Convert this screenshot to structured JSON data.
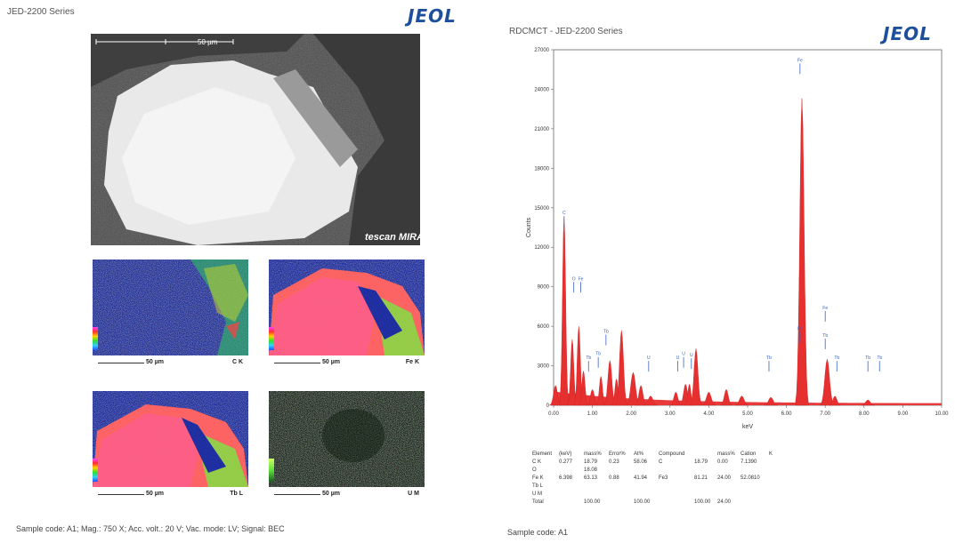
{
  "left_panel": {
    "series_title": "JED-2200 Series",
    "logo": "JEOL",
    "sem_image": {
      "scale_label": "50 µm",
      "watermark": "tescan MIRA"
    },
    "maps": [
      {
        "element": "C K",
        "scale": "50 µm"
      },
      {
        "element": "Fe K",
        "scale": "50 µm"
      },
      {
        "element": "Tb L",
        "scale": "50 µm"
      },
      {
        "element": "U M",
        "scale": "50 µm"
      }
    ],
    "caption": "Sample code: A1; Mag.: 750 X; Acc. volt.: 20 V; Vac. mode: LV; Signal: BEC"
  },
  "right_panel": {
    "series_title": "RDCMCT - JED-2200 Series",
    "logo": "JEOL",
    "caption": "Sample code: A1"
  },
  "chart_data": {
    "type": "line",
    "title": "",
    "xlabel": "keV",
    "ylabel": "Counts",
    "xlim": [
      0,
      10
    ],
    "ylim": [
      0,
      27000
    ],
    "x_ticks": [
      "0.00",
      "1.00",
      "2.00",
      "3.00",
      "4.00",
      "5.00",
      "6.00",
      "7.00",
      "8.00",
      "9.00",
      "10.00"
    ],
    "y_ticks": [
      "0",
      "3000",
      "6000",
      "9000",
      "12000",
      "15000",
      "18000",
      "21000",
      "24000",
      "27000"
    ],
    "peaks": [
      {
        "x": 0.05,
        "y": 1500,
        "w": 0.05
      },
      {
        "x": 0.27,
        "y": 14300,
        "w": 0.04
      },
      {
        "x": 0.48,
        "y": 5000,
        "w": 0.04
      },
      {
        "x": 0.65,
        "y": 6000,
        "w": 0.04
      },
      {
        "x": 0.77,
        "y": 2600,
        "w": 0.04
      },
      {
        "x": 1.0,
        "y": 1200,
        "w": 0.05
      },
      {
        "x": 1.22,
        "y": 2200,
        "w": 0.04
      },
      {
        "x": 1.45,
        "y": 3400,
        "w": 0.05
      },
      {
        "x": 1.62,
        "y": 2000,
        "w": 0.04
      },
      {
        "x": 1.75,
        "y": 5700,
        "w": 0.05
      },
      {
        "x": 2.05,
        "y": 2500,
        "w": 0.06
      },
      {
        "x": 2.25,
        "y": 1500,
        "w": 0.05
      },
      {
        "x": 2.5,
        "y": 700,
        "w": 0.06
      },
      {
        "x": 3.15,
        "y": 1000,
        "w": 0.05
      },
      {
        "x": 3.4,
        "y": 1600,
        "w": 0.05
      },
      {
        "x": 3.5,
        "y": 1600,
        "w": 0.04
      },
      {
        "x": 3.67,
        "y": 4300,
        "w": 0.05
      },
      {
        "x": 4.0,
        "y": 1000,
        "w": 0.06
      },
      {
        "x": 4.45,
        "y": 1200,
        "w": 0.05
      },
      {
        "x": 4.85,
        "y": 700,
        "w": 0.06
      },
      {
        "x": 5.6,
        "y": 600,
        "w": 0.06
      },
      {
        "x": 6.4,
        "y": 23300,
        "w": 0.055
      },
      {
        "x": 7.05,
        "y": 3500,
        "w": 0.06
      },
      {
        "x": 7.25,
        "y": 700,
        "w": 0.05
      },
      {
        "x": 8.1,
        "y": 400,
        "w": 0.06
      }
    ],
    "annotations": [
      {
        "x": 0.27,
        "y": 14500,
        "label": "C"
      },
      {
        "x": 0.52,
        "y": 9500,
        "label": "O"
      },
      {
        "x": 0.7,
        "y": 9500,
        "label": "Fe"
      },
      {
        "x": 0.9,
        "y": 3500,
        "label": "Tb"
      },
      {
        "x": 1.15,
        "y": 3800,
        "label": "Tb"
      },
      {
        "x": 1.35,
        "y": 5500,
        "label": "Tb"
      },
      {
        "x": 2.45,
        "y": 3500,
        "label": "U"
      },
      {
        "x": 3.2,
        "y": 3500,
        "label": "U"
      },
      {
        "x": 3.35,
        "y": 3800,
        "label": "U"
      },
      {
        "x": 3.55,
        "y": 3700,
        "label": "U"
      },
      {
        "x": 5.55,
        "y": 3500,
        "label": "Tb"
      },
      {
        "x": 6.35,
        "y": 26100,
        "label": "Fe"
      },
      {
        "x": 6.35,
        "y": 5700,
        "label": "Fe"
      },
      {
        "x": 7.0,
        "y": 7300,
        "label": "Fe"
      },
      {
        "x": 7.0,
        "y": 5200,
        "label": "Tb"
      },
      {
        "x": 7.3,
        "y": 3500,
        "label": "Tb"
      },
      {
        "x": 8.1,
        "y": 3500,
        "label": "Tb"
      },
      {
        "x": 8.4,
        "y": 3500,
        "label": "Tb"
      }
    ],
    "table": {
      "columns": [
        "Element",
        "(keV)",
        "mass%",
        "Error%",
        "At%",
        "Compound",
        "",
        "mass%",
        "Cation",
        "K"
      ],
      "rows": [
        [
          "C K",
          "0.277",
          "18.79",
          "0.23",
          "58.06",
          "C",
          "18.79",
          "0.00",
          "7.1390",
          ""
        ],
        [
          "O",
          "",
          "18.08",
          "",
          "",
          "",
          "",
          "",
          "",
          ""
        ],
        [
          "Fe K",
          "6.398",
          "63.13",
          "0.88",
          "41.94",
          "Fe3",
          "81.21",
          "24.00",
          "52.0810",
          ""
        ],
        [
          "Tb L",
          "",
          "",
          "",
          "",
          "",
          "",
          "",
          "",
          ""
        ],
        [
          "U M",
          "",
          "",
          "",
          "",
          "",
          "",
          "",
          "",
          ""
        ],
        [
          "Total",
          "",
          "100.00",
          "",
          "100.00",
          "",
          "100.00",
          "24.00",
          "",
          ""
        ]
      ]
    }
  }
}
